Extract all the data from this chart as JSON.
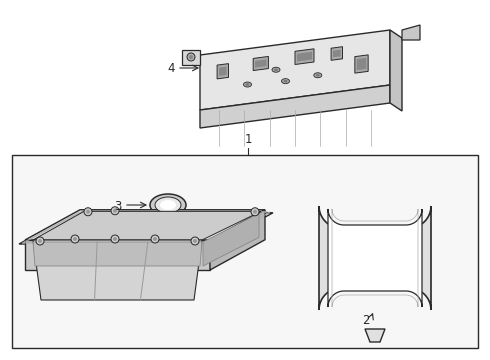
{
  "bg_color": "#ffffff",
  "line_color": "#2a2a2a",
  "fig_width": 4.9,
  "fig_height": 3.6,
  "dpi": 100,
  "label1": "1",
  "label2": "2",
  "label3": "3",
  "label4": "4"
}
